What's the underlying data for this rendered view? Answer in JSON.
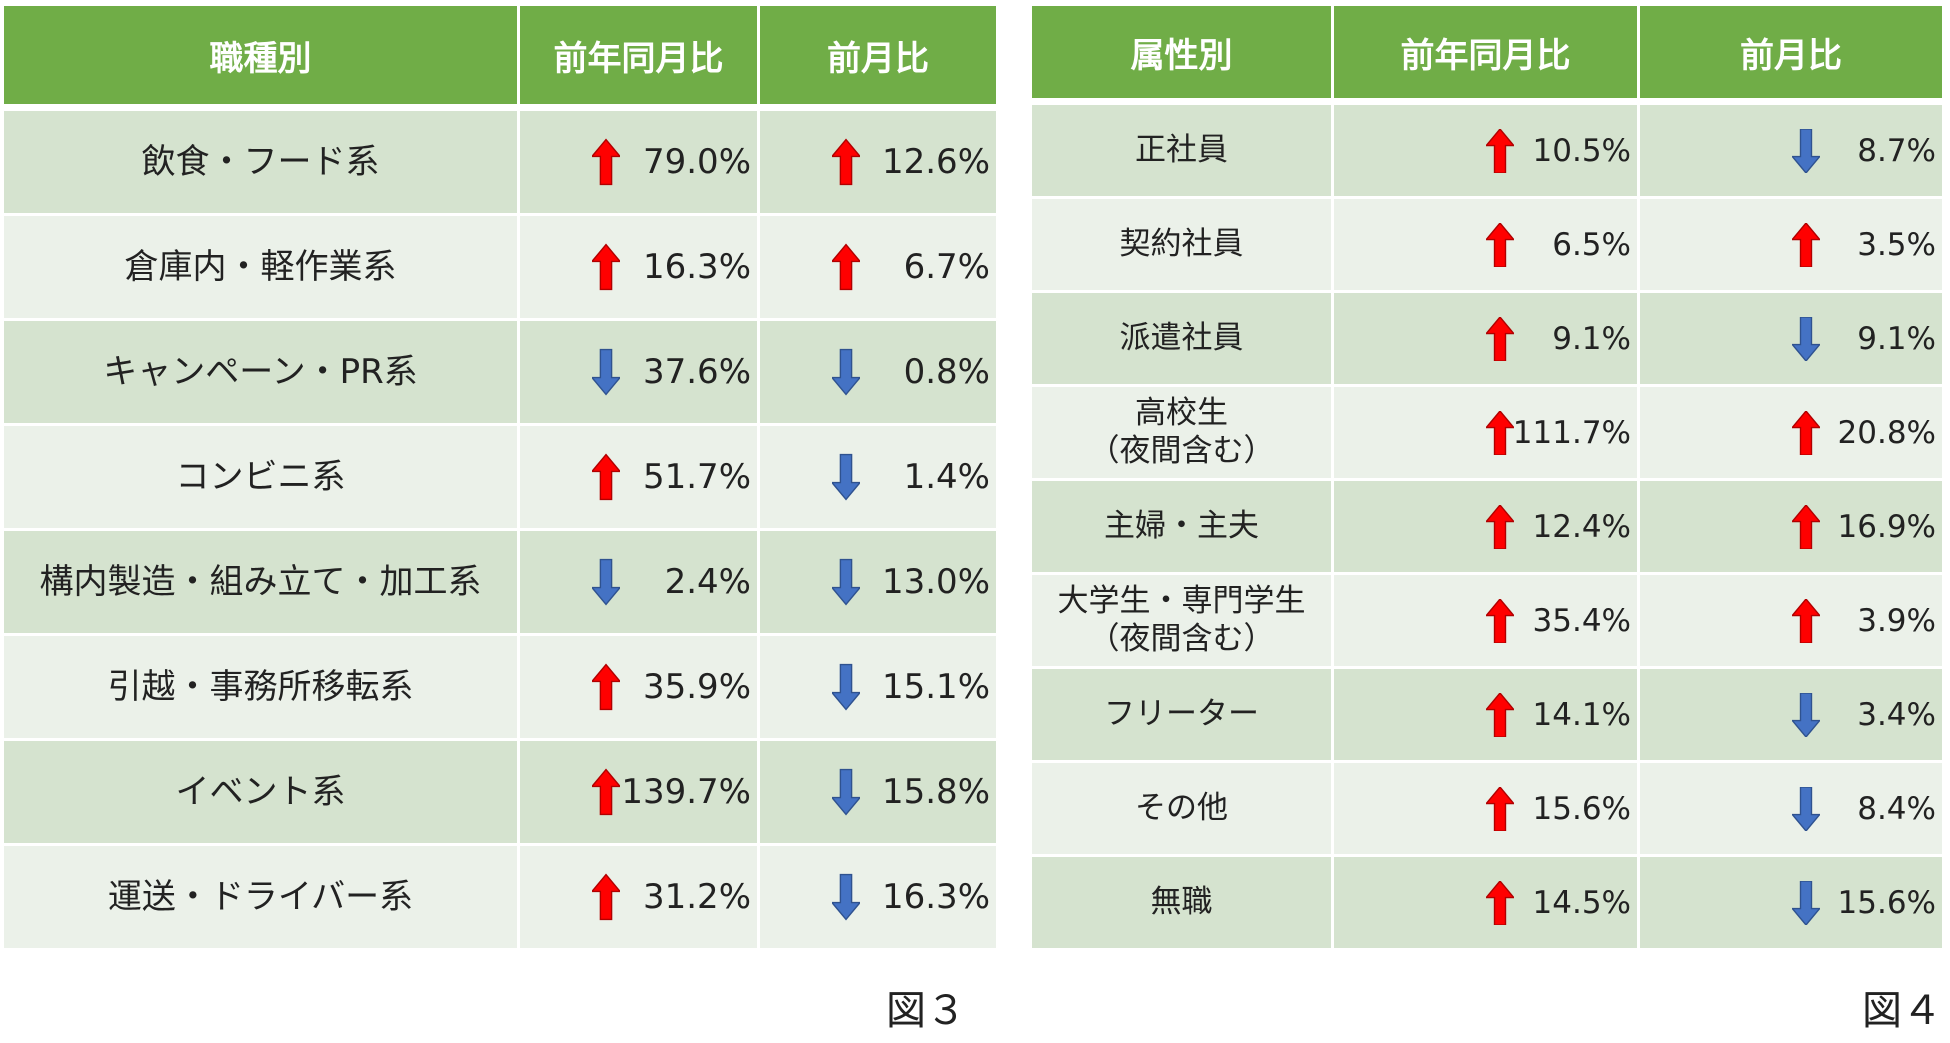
{
  "colors": {
    "header_bg": "#70ad47",
    "row_dark": "#d5e3cf",
    "row_light": "#ebf1e9",
    "up": "#ff0000",
    "down": "#4472c4"
  },
  "chart_data": [
    {
      "type": "table",
      "columns": [
        "職種別",
        "前年同月比",
        "前月比"
      ],
      "caption": "図３",
      "rows": [
        {
          "label": "飲食・フード系",
          "yoy": {
            "value": "79.0%",
            "dir": "up"
          },
          "mom": {
            "value": "12.6%",
            "dir": "up"
          }
        },
        {
          "label": "倉庫内・軽作業系",
          "yoy": {
            "value": "16.3%",
            "dir": "up"
          },
          "mom": {
            "value": "6.7%",
            "dir": "up"
          }
        },
        {
          "label": "キャンペーン・PR系",
          "yoy": {
            "value": "37.6%",
            "dir": "down"
          },
          "mom": {
            "value": "0.8%",
            "dir": "down"
          }
        },
        {
          "label": "コンビニ系",
          "yoy": {
            "value": "51.7%",
            "dir": "up"
          },
          "mom": {
            "value": "1.4%",
            "dir": "down"
          }
        },
        {
          "label": "構内製造・組み立て・加工系",
          "yoy": {
            "value": "2.4%",
            "dir": "down"
          },
          "mom": {
            "value": "13.0%",
            "dir": "down"
          }
        },
        {
          "label": "引越・事務所移転系",
          "yoy": {
            "value": "35.9%",
            "dir": "up"
          },
          "mom": {
            "value": "15.1%",
            "dir": "down"
          }
        },
        {
          "label": "イベント系",
          "yoy": {
            "value": "139.7%",
            "dir": "up"
          },
          "mom": {
            "value": "15.8%",
            "dir": "down"
          }
        },
        {
          "label": "運送・ドライバー系",
          "yoy": {
            "value": "31.2%",
            "dir": "up"
          },
          "mom": {
            "value": "16.3%",
            "dir": "down"
          }
        }
      ]
    },
    {
      "type": "table",
      "columns": [
        "属性別",
        "前年同月比",
        "前月比"
      ],
      "caption": "図４",
      "rows": [
        {
          "label": "正社員",
          "yoy": {
            "value": "10.5%",
            "dir": "up"
          },
          "mom": {
            "value": "8.7%",
            "dir": "down"
          }
        },
        {
          "label": "契約社員",
          "yoy": {
            "value": "6.5%",
            "dir": "up"
          },
          "mom": {
            "value": "3.5%",
            "dir": "up"
          }
        },
        {
          "label": "派遣社員",
          "yoy": {
            "value": "9.1%",
            "dir": "up"
          },
          "mom": {
            "value": "9.1%",
            "dir": "down"
          }
        },
        {
          "label": "高校生\n（夜間含む）",
          "yoy": {
            "value": "111.7%",
            "dir": "up"
          },
          "mom": {
            "value": "20.8%",
            "dir": "up"
          }
        },
        {
          "label": "主婦・主夫",
          "yoy": {
            "value": "12.4%",
            "dir": "up"
          },
          "mom": {
            "value": "16.9%",
            "dir": "up"
          }
        },
        {
          "label": "大学生・専門学生\n（夜間含む）",
          "yoy": {
            "value": "35.4%",
            "dir": "up"
          },
          "mom": {
            "value": "3.9%",
            "dir": "up"
          }
        },
        {
          "label": "フリーター",
          "yoy": {
            "value": "14.1%",
            "dir": "up"
          },
          "mom": {
            "value": "3.4%",
            "dir": "down"
          }
        },
        {
          "label": "その他",
          "yoy": {
            "value": "15.6%",
            "dir": "up"
          },
          "mom": {
            "value": "8.4%",
            "dir": "down"
          }
        },
        {
          "label": "無職",
          "yoy": {
            "value": "14.5%",
            "dir": "up"
          },
          "mom": {
            "value": "15.6%",
            "dir": "down"
          }
        }
      ]
    }
  ]
}
